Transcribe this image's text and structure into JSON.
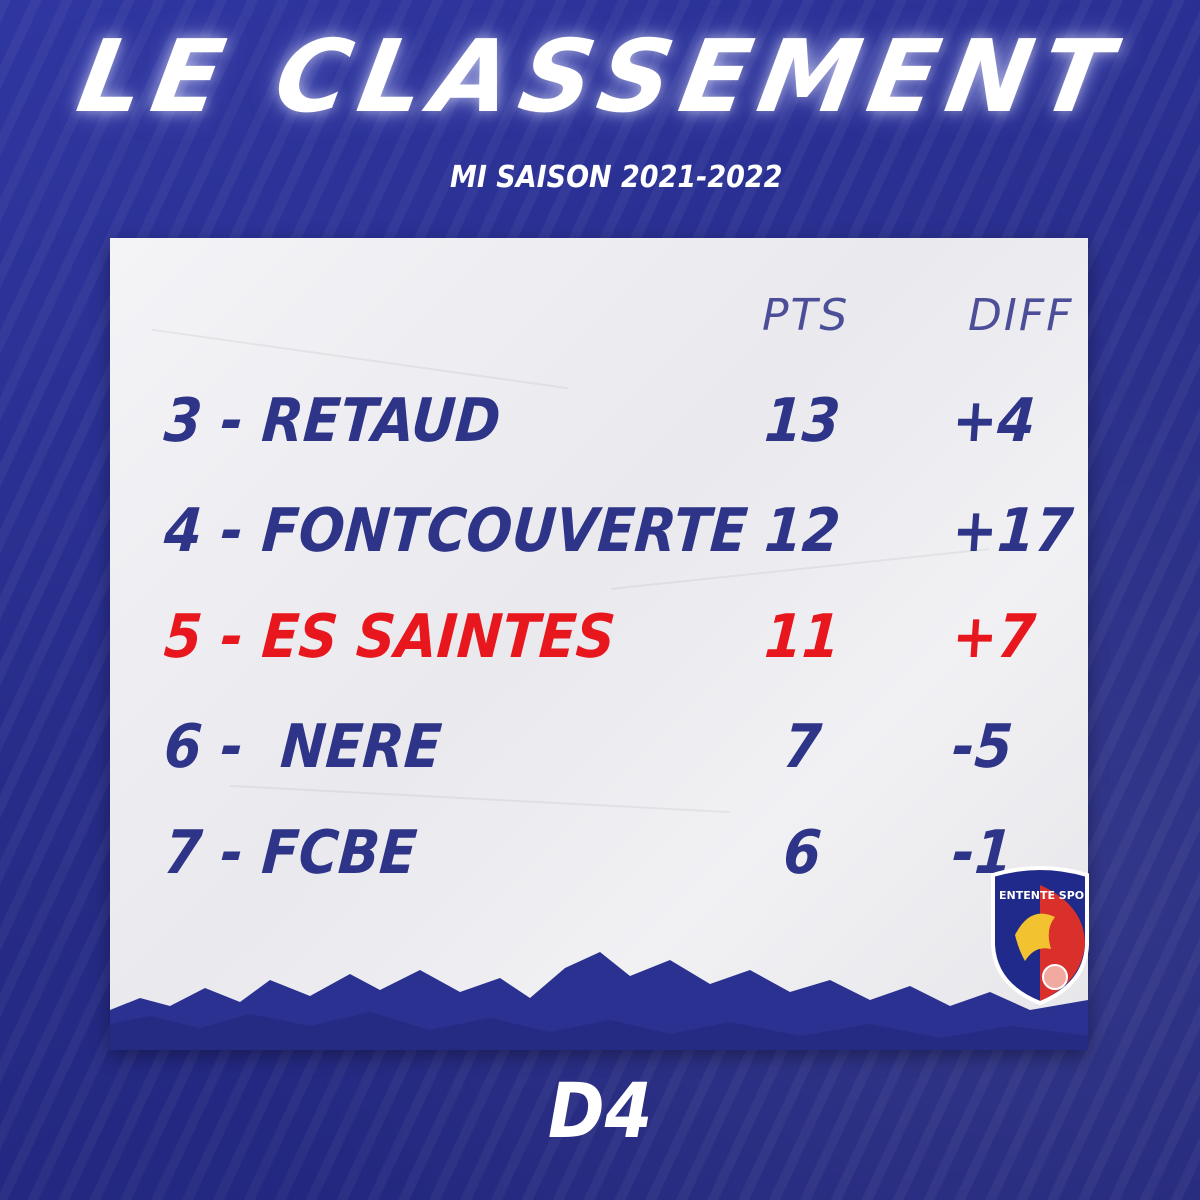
{
  "header": {
    "title": "LE CLASSEMENT",
    "subtitle": "MI SAISON 2021-2022"
  },
  "table": {
    "col_pts": "PTS",
    "col_diff": "DIFF",
    "rows": [
      {
        "team": "3 - RETAUD",
        "pts": "13",
        "diff": "+4",
        "highlight": false
      },
      {
        "team": "4 - FONTCOUVERTE",
        "pts": "12",
        "diff": "+17",
        "highlight": false
      },
      {
        "team": "5 - ES SAINTES",
        "pts": "11",
        "diff": "+7",
        "highlight": true
      },
      {
        "team": "6 -  NERE",
        "pts": "7",
        "diff": "-5",
        "highlight": false
      },
      {
        "team": "7 - FCBE",
        "pts": "6",
        "diff": "-1",
        "highlight": false
      }
    ]
  },
  "footer": {
    "division": "D4"
  },
  "logo": {
    "icon": "entente-sportive-crest-icon",
    "text": "ENTENTE SPORTIVE"
  },
  "colors": {
    "background": "#2b3191",
    "text_blue": "#2e3487",
    "highlight_red": "#e8161d",
    "paper": "#eeeef2"
  }
}
